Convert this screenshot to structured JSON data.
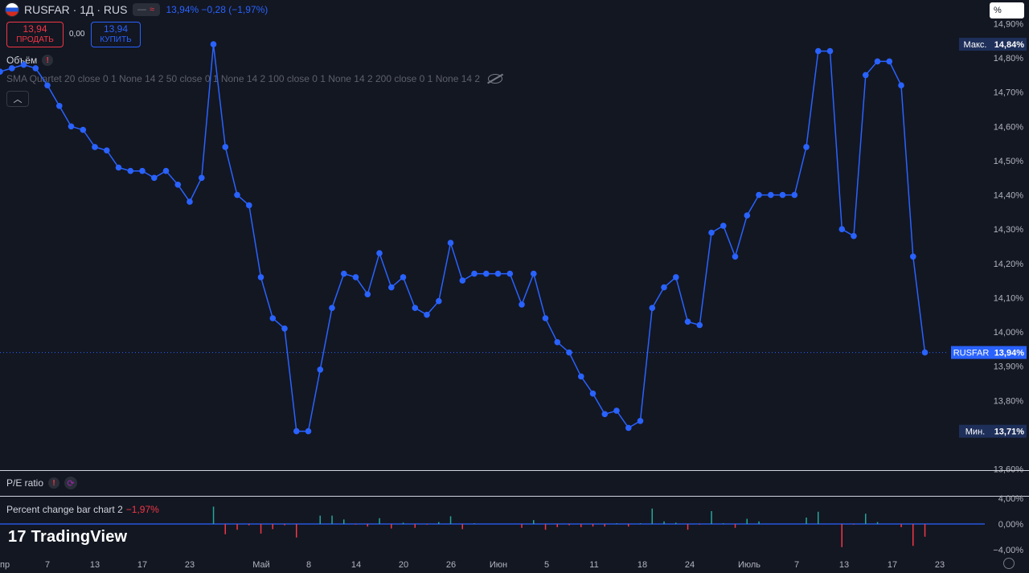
{
  "header": {
    "symbol": "RUSFAR · 1Д · RUS",
    "quote": "13,94% −0,28 (−1,97%)"
  },
  "trade": {
    "sell_price": "13,94",
    "sell_label": "ПРОДАТЬ",
    "spread": "0,00",
    "buy_price": "13,94",
    "buy_label": "КУПИТЬ"
  },
  "indicators": {
    "volume": "Объём",
    "sma": "SMA Quartet 20 close 0 1 None 14 2 50 close 0 1 None 14 2 100 close 0 1 None 14 2 200 close 0 1 None 14 2",
    "pe": "P/E ratio",
    "pcb": "Percent change bar chart 2",
    "pcb_value": "−1,97%"
  },
  "scale_mode": "%",
  "brand": "TradingView",
  "colors": {
    "line": "#2962ff",
    "up": "#26a69a",
    "down": "#f23645",
    "bg": "#131722"
  },
  "chart_data": [
    {
      "type": "line",
      "series": [
        {
          "values": [
            14.76,
            14.77,
            14.78,
            14.77,
            14.72,
            14.66,
            14.6,
            14.59,
            14.54,
            14.53,
            14.48,
            14.47,
            14.47,
            14.45,
            14.47,
            14.43,
            14.38,
            14.45,
            14.84,
            14.54,
            14.4,
            14.37,
            14.16,
            14.04,
            14.01,
            13.71,
            13.71,
            13.89,
            14.07,
            14.17,
            14.16,
            14.11,
            14.23,
            14.13,
            14.16,
            14.07,
            14.05,
            14.09,
            14.26,
            14.15,
            14.17,
            14.17,
            14.17,
            14.17,
            14.08,
            14.17,
            14.04,
            13.97,
            13.94,
            13.87,
            13.82,
            13.76,
            13.77,
            13.72,
            13.74,
            14.07,
            14.13,
            14.16,
            14.03,
            14.02,
            14.29,
            14.31,
            14.22,
            14.34,
            14.4,
            14.4,
            14.4,
            14.4,
            14.54,
            14.82,
            14.82,
            14.3,
            14.28,
            14.75,
            14.79,
            14.79,
            14.72,
            14.22,
            13.94
          ]
        }
      ],
      "x_ticks": [
        "пр",
        "7",
        "13",
        "17",
        "23",
        "Май",
        "8",
        "14",
        "20",
        "26",
        "Июн",
        "5",
        "11",
        "18",
        "24",
        "Июль",
        "7",
        "13",
        "17",
        "23"
      ],
      "y_ticks": [
        "14,90%",
        "14,80%",
        "14,70%",
        "14,60%",
        "14,50%",
        "14,40%",
        "14,30%",
        "14,20%",
        "14,10%",
        "14,00%",
        "13,90%",
        "13,80%",
        "13,60%"
      ],
      "ylim": [
        13.6,
        14.9
      ],
      "max_label": "Макс.",
      "max_value": "14,84%",
      "min_label": "Мин.",
      "min_value": "13,71%",
      "last_symbol": "RUSFAR",
      "last_value": "13,94%"
    },
    {
      "type": "bar",
      "values": [
        0,
        0,
        0,
        0,
        0,
        0,
        0,
        0,
        0,
        0,
        0,
        0,
        0,
        0,
        0,
        0,
        0,
        0,
        2.7,
        -1.6,
        -0.9,
        -0.2,
        -1.5,
        -0.8,
        -0.2,
        -2.1,
        0,
        1.3,
        1.3,
        0.7,
        -0.1,
        -0.4,
        0.9,
        -0.7,
        0.2,
        -0.6,
        -0.1,
        0.3,
        1.2,
        -0.8,
        0.1,
        0,
        0,
        0,
        -0.6,
        0.6,
        -0.9,
        -0.5,
        -0.2,
        -0.5,
        -0.4,
        -0.4,
        0.1,
        -0.4,
        0.1,
        2.4,
        0.4,
        0.2,
        -0.9,
        -0.1,
        2.0,
        0.1,
        -0.6,
        0.8,
        0.4,
        0,
        0,
        0,
        1.0,
        1.9,
        0,
        -3.6,
        -0.1,
        1.6,
        0.3,
        0,
        -0.5,
        -3.4,
        -1.97
      ],
      "y_ticks": [
        "4,00%",
        "0,00%",
        "−4,00%"
      ],
      "ylim": [
        -4,
        4
      ]
    }
  ]
}
